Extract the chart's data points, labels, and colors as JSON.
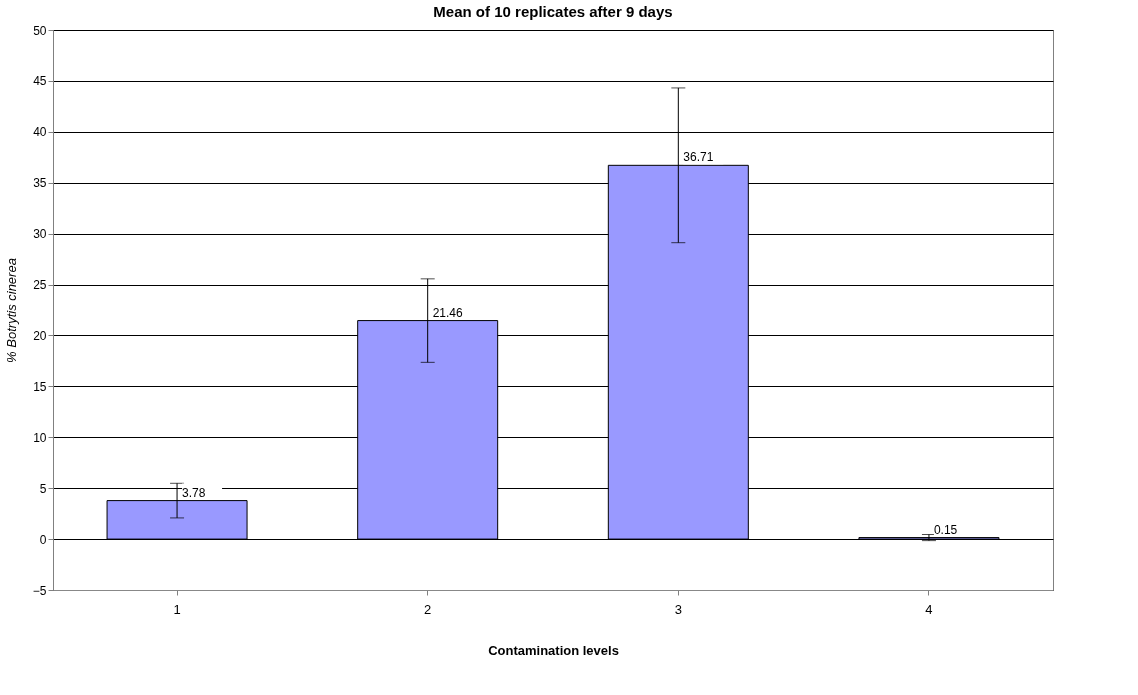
{
  "chart_data": {
    "type": "bar",
    "title": "Mean of 10 replicates after 9 days",
    "xlabel": "Contamination levels",
    "ylabel": "% Botrytis cinerea",
    "categories": [
      "1",
      "2",
      "3",
      "4"
    ],
    "values": [
      3.78,
      21.46,
      36.71,
      0.15
    ],
    "errors": [
      1.7,
      4.1,
      7.6,
      0.3
    ],
    "color": "#9999ff",
    "ylim": [
      -5,
      50
    ],
    "yticks": [
      -5,
      0,
      5,
      10,
      15,
      20,
      25,
      30,
      35,
      40,
      45,
      50
    ],
    "grid": "y",
    "data_labels": true
  }
}
